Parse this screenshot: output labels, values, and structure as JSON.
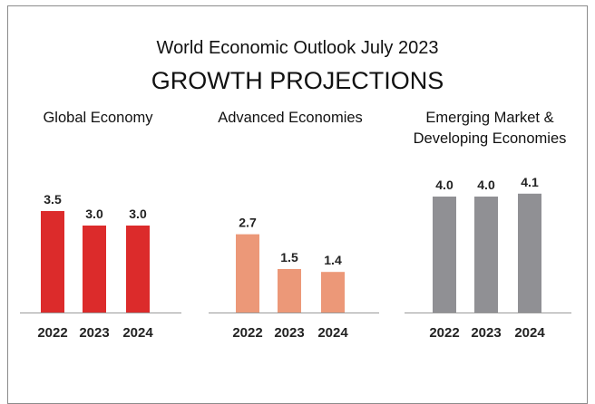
{
  "header": {
    "line1": "World Economic Outlook July 2023",
    "line2": "GROWTH PROJECTIONS"
  },
  "colors": {
    "global": "#dc2b2b",
    "advanced": "#ec9878",
    "emerging": "#909094"
  },
  "chart_data": [
    {
      "type": "bar",
      "title": "Global Economy",
      "categories": [
        "2022",
        "2023",
        "2024"
      ],
      "values": [
        3.5,
        3.0,
        3.0
      ],
      "value_labels": [
        "3.5",
        "3.0",
        "3.0"
      ],
      "ylim": [
        0,
        4.5
      ]
    },
    {
      "type": "bar",
      "title": "Advanced Economies",
      "categories": [
        "2022",
        "2023",
        "2024"
      ],
      "values": [
        2.7,
        1.5,
        1.4
      ],
      "value_labels": [
        "2.7",
        "1.5",
        "1.4"
      ],
      "ylim": [
        0,
        4.5
      ]
    },
    {
      "type": "bar",
      "title_lines": [
        "Emerging Market &",
        "Developing Economies"
      ],
      "categories": [
        "2022",
        "2023",
        "2024"
      ],
      "values": [
        4.0,
        4.0,
        4.1
      ],
      "value_labels": [
        "4.0",
        "4.0",
        "4.1"
      ],
      "ylim": [
        0,
        4.5
      ]
    }
  ]
}
